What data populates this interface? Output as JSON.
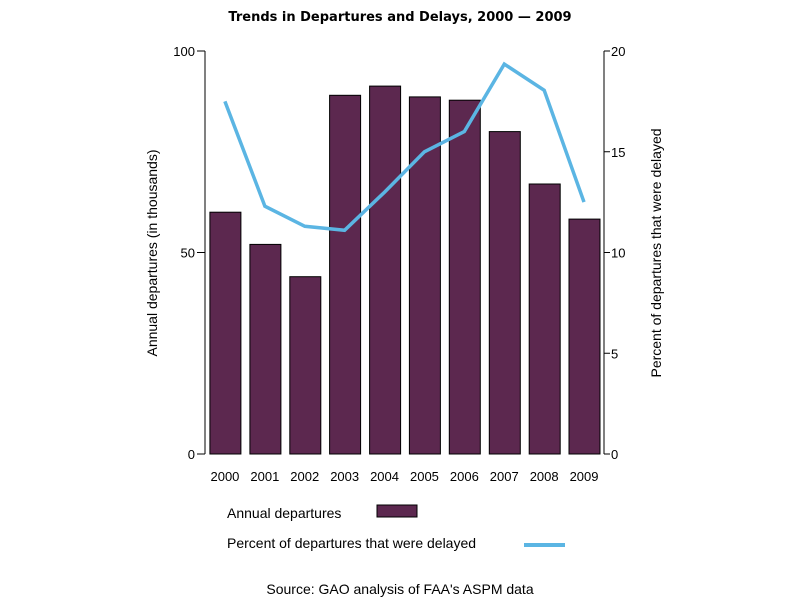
{
  "chart_data": {
    "type": "bar",
    "title": "Trends in Departures and Delays, 2000 — 2009",
    "categories": [
      "2000",
      "2001",
      "2002",
      "2003",
      "2004",
      "2005",
      "2006",
      "2007",
      "2008",
      "2009"
    ],
    "series": [
      {
        "name": "Annual departures",
        "type": "bar",
        "axis": "left",
        "color": "#5C284F",
        "values": [
          60,
          52,
          44,
          89,
          91.3,
          88.6,
          87.8,
          80,
          67,
          58.3
        ]
      },
      {
        "name": "Percent of departures that were delayed",
        "type": "line",
        "axis": "right",
        "color": "#5BB5E3",
        "values": [
          17.5,
          12.3,
          11.3,
          11.1,
          13.0,
          15.0,
          16.0,
          19.35,
          18.05,
          12.5
        ]
      }
    ],
    "ylabel": "Annual departures (in thousands)",
    "ylim": [
      0,
      100
    ],
    "yticks": [
      0,
      50,
      100
    ],
    "y2label": "Percent of departures that were delayed",
    "y2lim": [
      0,
      20
    ],
    "y2ticks": [
      0,
      5,
      10,
      15,
      20
    ],
    "xlabel": "",
    "grid": false,
    "legend_position": "bottom",
    "source": "Source: GAO analysis of FAA's ASPM data"
  }
}
